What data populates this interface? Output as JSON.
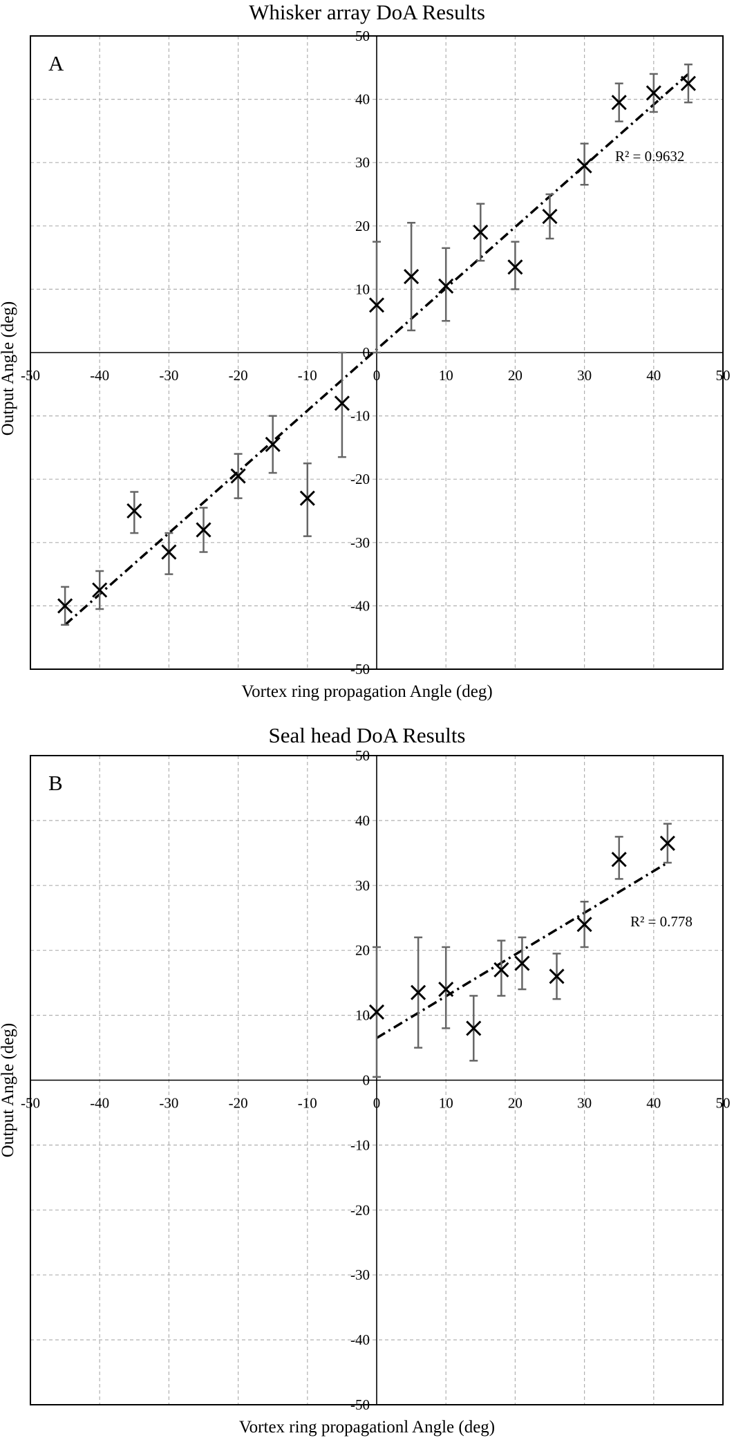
{
  "chart_data": [
    {
      "type": "scatter",
      "panel": "A",
      "title": "Whisker array DoA Results",
      "xlabel": "Vortex ring propagation Angle (deg)",
      "ylabel": "Output Angle (deg)",
      "xlim": [
        -50,
        50
      ],
      "ylim": [
        -50,
        50
      ],
      "xticks": [
        -50,
        -40,
        -30,
        -20,
        -10,
        0,
        10,
        20,
        30,
        40,
        50
      ],
      "yticks": [
        -50,
        -40,
        -30,
        -20,
        -10,
        0,
        10,
        20,
        30,
        40,
        50
      ],
      "grid": true,
      "trendline": {
        "style": "dash-dot",
        "x": [
          -45,
          45
        ],
        "y": [
          -43,
          44
        ]
      },
      "r2_label": "R² = 0.9632",
      "points": [
        {
          "x": -45,
          "y": -40,
          "err_low": -43,
          "err_high": -37
        },
        {
          "x": -40,
          "y": -37.5,
          "err_low": -40.5,
          "err_high": -34.5
        },
        {
          "x": -35,
          "y": -25,
          "err_low": -28.5,
          "err_high": -22
        },
        {
          "x": -30,
          "y": -31.5,
          "err_low": -35,
          "err_high": -28.5
        },
        {
          "x": -25,
          "y": -28,
          "err_low": -31.5,
          "err_high": -24.5
        },
        {
          "x": -20,
          "y": -19.5,
          "err_low": -23,
          "err_high": -16
        },
        {
          "x": -15,
          "y": -14.5,
          "err_low": -19,
          "err_high": -10
        },
        {
          "x": -10,
          "y": -23,
          "err_low": -29,
          "err_high": -17.5
        },
        {
          "x": -5,
          "y": -8,
          "err_low": -16.5,
          "err_high": 0
        },
        {
          "x": 0,
          "y": 7.5,
          "err_low": 0,
          "err_high": 17.5
        },
        {
          "x": 5,
          "y": 12,
          "err_low": 3.5,
          "err_high": 20.5
        },
        {
          "x": 10,
          "y": 10.5,
          "err_low": 5,
          "err_high": 16.5
        },
        {
          "x": 15,
          "y": 19,
          "err_low": 14.5,
          "err_high": 23.5
        },
        {
          "x": 20,
          "y": 13.5,
          "err_low": 10,
          "err_high": 17.5
        },
        {
          "x": 25,
          "y": 21.5,
          "err_low": 18,
          "err_high": 25
        },
        {
          "x": 30,
          "y": 29.5,
          "err_low": 26.5,
          "err_high": 33
        },
        {
          "x": 35,
          "y": 39.5,
          "err_low": 36.5,
          "err_high": 42.5
        },
        {
          "x": 40,
          "y": 41,
          "err_low": 38,
          "err_high": 44
        },
        {
          "x": 45,
          "y": 42.5,
          "err_low": 39.5,
          "err_high": 45.5
        }
      ]
    },
    {
      "type": "scatter",
      "panel": "B",
      "title": "Seal head DoA Results",
      "xlabel": "Vortex ring propagationl Angle (deg)",
      "ylabel": "Output Angle (deg)",
      "xlim": [
        -50,
        50
      ],
      "ylim": [
        -50,
        50
      ],
      "xticks": [
        -50,
        -40,
        -30,
        -20,
        -10,
        0,
        10,
        20,
        30,
        40,
        50
      ],
      "yticks": [
        -50,
        -40,
        -30,
        -20,
        -10,
        0,
        10,
        20,
        30,
        40,
        50
      ],
      "grid": true,
      "trendline": {
        "style": "dash-dot",
        "x": [
          0,
          42
        ],
        "y": [
          6.5,
          33.5
        ]
      },
      "r2_label": "R² = 0.778",
      "points": [
        {
          "x": 0,
          "y": 10.5,
          "err_low": 0.5,
          "err_high": 20.5
        },
        {
          "x": 6,
          "y": 13.5,
          "err_low": 5,
          "err_high": 22
        },
        {
          "x": 10,
          "y": 14,
          "err_low": 8,
          "err_high": 20.5
        },
        {
          "x": 14,
          "y": 8,
          "err_low": 3,
          "err_high": 13
        },
        {
          "x": 18,
          "y": 17,
          "err_low": 13,
          "err_high": 21.5
        },
        {
          "x": 21,
          "y": 18,
          "err_low": 14,
          "err_high": 22
        },
        {
          "x": 26,
          "y": 16,
          "err_low": 12.5,
          "err_high": 19.5
        },
        {
          "x": 30,
          "y": 24,
          "err_low": 20.5,
          "err_high": 27.5
        },
        {
          "x": 35,
          "y": 34,
          "err_low": 31,
          "err_high": 37.5
        },
        {
          "x": 42,
          "y": 36.5,
          "err_low": 33.5,
          "err_high": 39.5
        }
      ]
    }
  ]
}
